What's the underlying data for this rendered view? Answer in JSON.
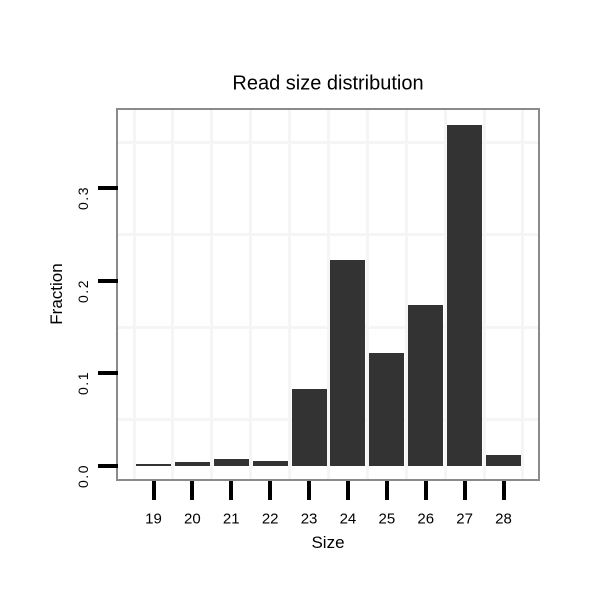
{
  "chart_data": {
    "type": "bar",
    "title": "Read size distribution",
    "xlabel": "Size",
    "ylabel": "Fraction",
    "categories": [
      "19",
      "20",
      "21",
      "22",
      "23",
      "24",
      "25",
      "26",
      "27",
      "28"
    ],
    "values": [
      0.002,
      0.004,
      0.008,
      0.005,
      0.083,
      0.223,
      0.122,
      0.174,
      0.368,
      0.012
    ],
    "y_ticks": [
      {
        "value": 0.0,
        "label": "0.0"
      },
      {
        "value": 0.1,
        "label": "0.1"
      },
      {
        "value": 0.2,
        "label": "0.2"
      },
      {
        "value": 0.3,
        "label": "0.3"
      }
    ],
    "h_gridlines_at": [
      0.05,
      0.15,
      0.25,
      0.35
    ],
    "ylim": [
      -0.016,
      0.386
    ],
    "legend": "none",
    "colors": {
      "bar": "#333333",
      "panel_border": "#8a8a8a",
      "gridline": "#f5f5f5",
      "tick": "#000000",
      "text": "#000000",
      "background": "#ffffff"
    }
  }
}
